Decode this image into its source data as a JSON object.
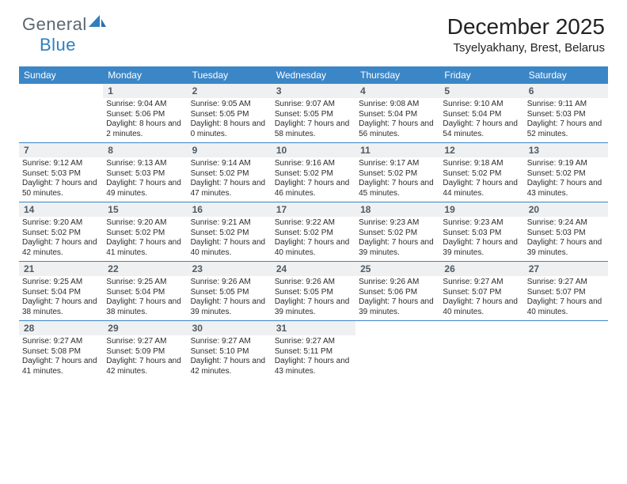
{
  "brand": {
    "part1": "General",
    "part2": "Blue"
  },
  "title": "December 2025",
  "location": "Tsyelyakhany, Brest, Belarus",
  "colors": {
    "header_bg": "#3b86c7",
    "daynum_bg": "#eef0f1",
    "border": "#3b86c7",
    "logo_gray": "#5a6770",
    "logo_blue": "#2f7fbf",
    "text": "#232323"
  },
  "day_names": [
    "Sunday",
    "Monday",
    "Tuesday",
    "Wednesday",
    "Thursday",
    "Friday",
    "Saturday"
  ],
  "weeks": [
    [
      null,
      {
        "n": "1",
        "sr": "Sunrise: 9:04 AM",
        "ss": "Sunset: 5:06 PM",
        "dl": "Daylight: 8 hours and 2 minutes."
      },
      {
        "n": "2",
        "sr": "Sunrise: 9:05 AM",
        "ss": "Sunset: 5:05 PM",
        "dl": "Daylight: 8 hours and 0 minutes."
      },
      {
        "n": "3",
        "sr": "Sunrise: 9:07 AM",
        "ss": "Sunset: 5:05 PM",
        "dl": "Daylight: 7 hours and 58 minutes."
      },
      {
        "n": "4",
        "sr": "Sunrise: 9:08 AM",
        "ss": "Sunset: 5:04 PM",
        "dl": "Daylight: 7 hours and 56 minutes."
      },
      {
        "n": "5",
        "sr": "Sunrise: 9:10 AM",
        "ss": "Sunset: 5:04 PM",
        "dl": "Daylight: 7 hours and 54 minutes."
      },
      {
        "n": "6",
        "sr": "Sunrise: 9:11 AM",
        "ss": "Sunset: 5:03 PM",
        "dl": "Daylight: 7 hours and 52 minutes."
      }
    ],
    [
      {
        "n": "7",
        "sr": "Sunrise: 9:12 AM",
        "ss": "Sunset: 5:03 PM",
        "dl": "Daylight: 7 hours and 50 minutes."
      },
      {
        "n": "8",
        "sr": "Sunrise: 9:13 AM",
        "ss": "Sunset: 5:03 PM",
        "dl": "Daylight: 7 hours and 49 minutes."
      },
      {
        "n": "9",
        "sr": "Sunrise: 9:14 AM",
        "ss": "Sunset: 5:02 PM",
        "dl": "Daylight: 7 hours and 47 minutes."
      },
      {
        "n": "10",
        "sr": "Sunrise: 9:16 AM",
        "ss": "Sunset: 5:02 PM",
        "dl": "Daylight: 7 hours and 46 minutes."
      },
      {
        "n": "11",
        "sr": "Sunrise: 9:17 AM",
        "ss": "Sunset: 5:02 PM",
        "dl": "Daylight: 7 hours and 45 minutes."
      },
      {
        "n": "12",
        "sr": "Sunrise: 9:18 AM",
        "ss": "Sunset: 5:02 PM",
        "dl": "Daylight: 7 hours and 44 minutes."
      },
      {
        "n": "13",
        "sr": "Sunrise: 9:19 AM",
        "ss": "Sunset: 5:02 PM",
        "dl": "Daylight: 7 hours and 43 minutes."
      }
    ],
    [
      {
        "n": "14",
        "sr": "Sunrise: 9:20 AM",
        "ss": "Sunset: 5:02 PM",
        "dl": "Daylight: 7 hours and 42 minutes."
      },
      {
        "n": "15",
        "sr": "Sunrise: 9:20 AM",
        "ss": "Sunset: 5:02 PM",
        "dl": "Daylight: 7 hours and 41 minutes."
      },
      {
        "n": "16",
        "sr": "Sunrise: 9:21 AM",
        "ss": "Sunset: 5:02 PM",
        "dl": "Daylight: 7 hours and 40 minutes."
      },
      {
        "n": "17",
        "sr": "Sunrise: 9:22 AM",
        "ss": "Sunset: 5:02 PM",
        "dl": "Daylight: 7 hours and 40 minutes."
      },
      {
        "n": "18",
        "sr": "Sunrise: 9:23 AM",
        "ss": "Sunset: 5:02 PM",
        "dl": "Daylight: 7 hours and 39 minutes."
      },
      {
        "n": "19",
        "sr": "Sunrise: 9:23 AM",
        "ss": "Sunset: 5:03 PM",
        "dl": "Daylight: 7 hours and 39 minutes."
      },
      {
        "n": "20",
        "sr": "Sunrise: 9:24 AM",
        "ss": "Sunset: 5:03 PM",
        "dl": "Daylight: 7 hours and 39 minutes."
      }
    ],
    [
      {
        "n": "21",
        "sr": "Sunrise: 9:25 AM",
        "ss": "Sunset: 5:04 PM",
        "dl": "Daylight: 7 hours and 38 minutes."
      },
      {
        "n": "22",
        "sr": "Sunrise: 9:25 AM",
        "ss": "Sunset: 5:04 PM",
        "dl": "Daylight: 7 hours and 38 minutes."
      },
      {
        "n": "23",
        "sr": "Sunrise: 9:26 AM",
        "ss": "Sunset: 5:05 PM",
        "dl": "Daylight: 7 hours and 39 minutes."
      },
      {
        "n": "24",
        "sr": "Sunrise: 9:26 AM",
        "ss": "Sunset: 5:05 PM",
        "dl": "Daylight: 7 hours and 39 minutes."
      },
      {
        "n": "25",
        "sr": "Sunrise: 9:26 AM",
        "ss": "Sunset: 5:06 PM",
        "dl": "Daylight: 7 hours and 39 minutes."
      },
      {
        "n": "26",
        "sr": "Sunrise: 9:27 AM",
        "ss": "Sunset: 5:07 PM",
        "dl": "Daylight: 7 hours and 40 minutes."
      },
      {
        "n": "27",
        "sr": "Sunrise: 9:27 AM",
        "ss": "Sunset: 5:07 PM",
        "dl": "Daylight: 7 hours and 40 minutes."
      }
    ],
    [
      {
        "n": "28",
        "sr": "Sunrise: 9:27 AM",
        "ss": "Sunset: 5:08 PM",
        "dl": "Daylight: 7 hours and 41 minutes."
      },
      {
        "n": "29",
        "sr": "Sunrise: 9:27 AM",
        "ss": "Sunset: 5:09 PM",
        "dl": "Daylight: 7 hours and 42 minutes."
      },
      {
        "n": "30",
        "sr": "Sunrise: 9:27 AM",
        "ss": "Sunset: 5:10 PM",
        "dl": "Daylight: 7 hours and 42 minutes."
      },
      {
        "n": "31",
        "sr": "Sunrise: 9:27 AM",
        "ss": "Sunset: 5:11 PM",
        "dl": "Daylight: 7 hours and 43 minutes."
      },
      null,
      null,
      null
    ]
  ]
}
